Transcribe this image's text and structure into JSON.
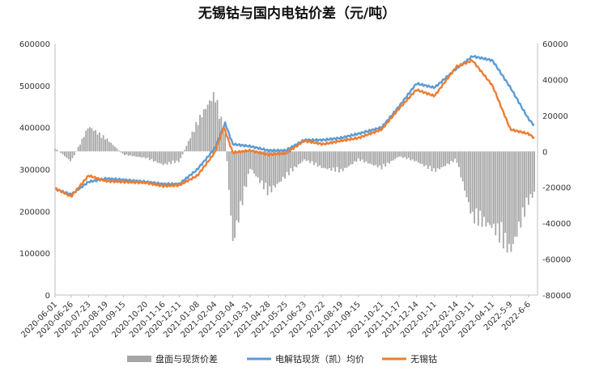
{
  "chart_data": {
    "type": "line",
    "title": "无锡钴与国内电钴价差（元/吨）",
    "left_axis": {
      "ylim": [
        0,
        600000
      ],
      "ticks": [
        "0",
        "100000",
        "200000",
        "300000",
        "400000",
        "500000",
        "600000"
      ]
    },
    "right_axis": {
      "ylim": [
        -80000,
        60000
      ],
      "ticks": [
        "-80000",
        "-60000",
        "-40000",
        "-20000",
        "0",
        "20000",
        "40000",
        "60000"
      ]
    },
    "x_tick_labels": [
      "2020-06-01",
      "2020-06-26",
      "2020-07-23",
      "2020-08-19",
      "2020-09-15",
      "2020-10-20",
      "2020-11-16",
      "2020-12-11",
      "2021-01-08",
      "2021-02-04",
      "2021-03-04",
      "2021-03-31",
      "2021-04-28",
      "2021-05-25",
      "2021-06-23",
      "2021-07-22",
      "2021-08-19",
      "2021-09-15",
      "2021-10-21",
      "2021-11-17",
      "2021-12-14",
      "2022-01-11",
      "2022-02-14",
      "2022-03-11",
      "2022-04-11",
      "2022-5-9",
      "2022-6-6"
    ],
    "legend": [
      "盘面与现货价差",
      "电解钴现货（凯）均价",
      "无锡钴"
    ],
    "legend_position": "bottom",
    "grid": false,
    "colors": {
      "spread": "#a6a6a6",
      "spot": "#5b9bd5",
      "wuxi": "#ed7d31"
    },
    "series": [
      {
        "name": "电解钴现货（凯）均价",
        "axis": "left",
        "x": [
          "2020-06-01",
          "2020-06-26",
          "2020-07-23",
          "2020-08-19",
          "2020-09-15",
          "2020-10-20",
          "2020-11-16",
          "2020-12-11",
          "2021-01-08",
          "2021-02-04",
          "2021-02-20",
          "2021-03-04",
          "2021-03-31",
          "2021-04-28",
          "2021-05-25",
          "2021-06-23",
          "2021-07-22",
          "2021-08-19",
          "2021-09-15",
          "2021-10-21",
          "2021-11-17",
          "2021-12-14",
          "2022-01-11",
          "2022-02-14",
          "2022-03-11",
          "2022-04-11",
          "2022-5-9",
          "2022-6-6",
          "2022-6-15"
        ],
        "values": [
          253000,
          240000,
          270000,
          278000,
          275000,
          270000,
          265000,
          265000,
          300000,
          350000,
          410000,
          360000,
          355000,
          345000,
          345000,
          370000,
          370000,
          375000,
          385000,
          400000,
          450000,
          505000,
          495000,
          540000,
          570000,
          560000,
          495000,
          420000,
          405000
        ]
      },
      {
        "name": "无锡钴",
        "axis": "left",
        "x": [
          "2020-06-01",
          "2020-06-26",
          "2020-07-23",
          "2020-08-19",
          "2020-09-15",
          "2020-10-20",
          "2020-11-16",
          "2020-12-11",
          "2021-01-08",
          "2021-02-04",
          "2021-02-18",
          "2021-03-04",
          "2021-03-31",
          "2021-04-28",
          "2021-05-25",
          "2021-06-23",
          "2021-07-22",
          "2021-08-19",
          "2021-09-15",
          "2021-10-21",
          "2021-11-17",
          "2021-12-14",
          "2022-01-11",
          "2022-02-14",
          "2022-03-11",
          "2022-04-11",
          "2022-5-9",
          "2022-6-6",
          "2022-6-15"
        ],
        "values": [
          255000,
          235000,
          285000,
          272000,
          270000,
          268000,
          260000,
          262000,
          285000,
          340000,
          400000,
          340000,
          345000,
          335000,
          338000,
          368000,
          360000,
          368000,
          375000,
          395000,
          445000,
          490000,
          475000,
          545000,
          560000,
          500000,
          395000,
          385000,
          375000
        ]
      },
      {
        "name": "盘面与现货价差",
        "axis": "right",
        "type": "bar",
        "x": [
          "2020-06-01",
          "2020-06-26",
          "2020-07-23",
          "2020-08-19",
          "2020-09-15",
          "2020-10-20",
          "2020-11-16",
          "2020-12-11",
          "2021-01-08",
          "2021-02-04",
          "2021-02-20",
          "2021-03-04",
          "2021-03-31",
          "2021-04-28",
          "2021-05-25",
          "2021-06-23",
          "2021-07-22",
          "2021-08-19",
          "2021-09-15",
          "2021-10-21",
          "2021-11-17",
          "2021-12-14",
          "2022-01-11",
          "2022-02-14",
          "2022-03-11",
          "2022-04-11",
          "2022-5-9",
          "2022-6-6",
          "2022-6-15"
        ],
        "values": [
          2000,
          -6000,
          15000,
          8000,
          -2000,
          -4000,
          -8000,
          -6000,
          18000,
          35000,
          10000,
          -55000,
          -10000,
          -25000,
          -15000,
          -5000,
          -10000,
          -12000,
          -5000,
          -10000,
          -3000,
          -6000,
          -12000,
          -5000,
          -40000,
          -45000,
          -60000,
          -30000,
          -25000
        ]
      }
    ]
  }
}
